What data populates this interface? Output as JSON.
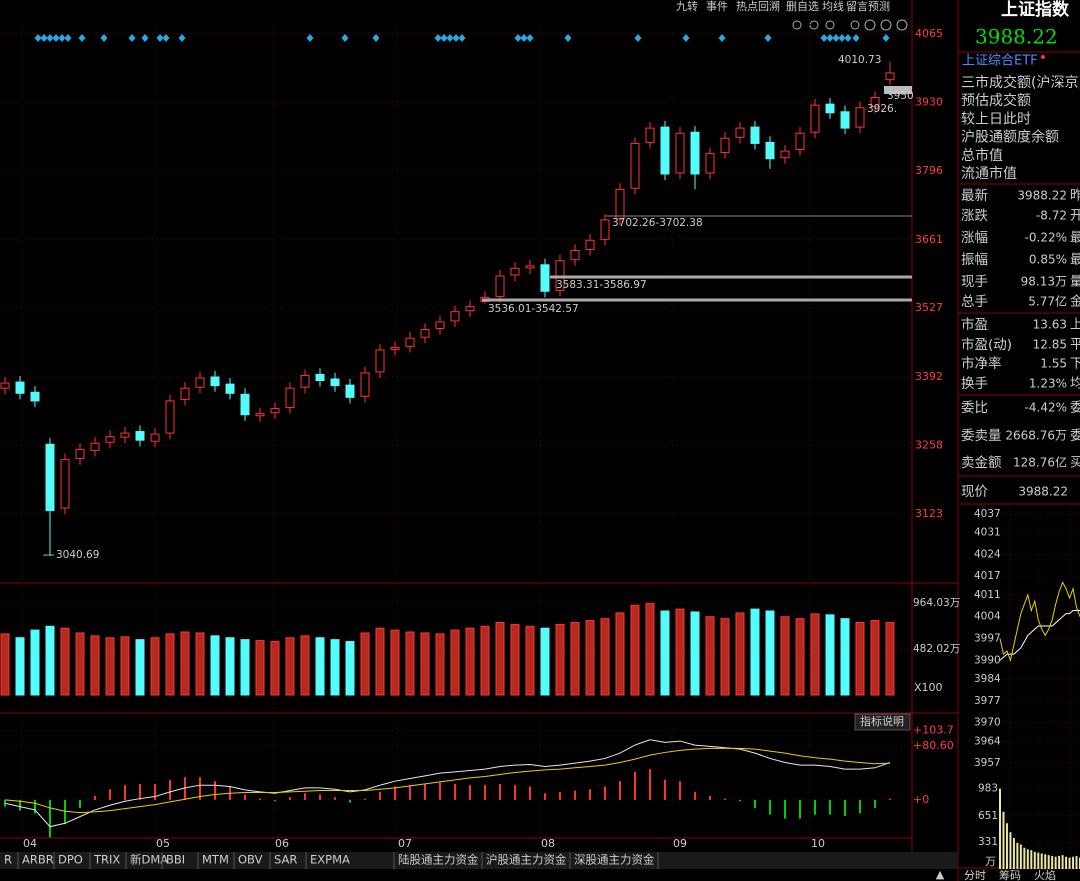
{
  "toolbar": [
    "九转",
    "事件",
    "热点回溯",
    "删自选",
    "均线",
    "留言",
    "预测"
  ],
  "main_chart": {
    "type": "candlestick",
    "ylim": [
      2988,
      4092
    ],
    "yticks": [
      4065,
      3930,
      3796,
      3661,
      3527,
      3392,
      3258,
      3123
    ],
    "open": [
      3370,
      3382,
      3362,
      3260,
      3135,
      3232,
      3248,
      3264,
      3274,
      3285,
      3266,
      3282,
      3348,
      3372,
      3392,
      3378,
      3358,
      3316,
      3322,
      3332,
      3372,
      3397,
      3388,
      3376,
      3354,
      3402,
      3446,
      3452,
      3470,
      3487,
      3502,
      3522,
      3540,
      3550,
      3592,
      3606,
      3612,
      3562,
      3622,
      3642,
      3662,
      3702,
      3762,
      3852,
      3882,
      3792,
      3872,
      3792,
      3832,
      3862,
      3882,
      3852,
      3822,
      3838,
      3872,
      3927,
      3912,
      3882,
      3922,
      3975
    ],
    "close": [
      3380,
      3360,
      3345,
      3130,
      3230,
      3250,
      3262,
      3275,
      3282,
      3268,
      3280,
      3345,
      3370,
      3390,
      3375,
      3360,
      3318,
      3320,
      3330,
      3370,
      3395,
      3385,
      3375,
      3352,
      3400,
      3445,
      3450,
      3468,
      3485,
      3500,
      3520,
      3530,
      3548,
      3590,
      3605,
      3610,
      3560,
      3620,
      3640,
      3660,
      3700,
      3760,
      3850,
      3880,
      3790,
      3870,
      3790,
      3830,
      3860,
      3880,
      3850,
      3820,
      3835,
      3870,
      3925,
      3910,
      3880,
      3920,
      3940,
      3988.22
    ],
    "high": [
      3392,
      3394,
      3374,
      3272,
      3242,
      3262,
      3274,
      3287,
      3294,
      3297,
      3292,
      3357,
      3382,
      3402,
      3404,
      3390,
      3370,
      3332,
      3342,
      3382,
      3407,
      3409,
      3400,
      3388,
      3412,
      3457,
      3462,
      3480,
      3497,
      3512,
      3532,
      3542,
      3560,
      3602,
      3617,
      3622,
      3624,
      3632,
      3652,
      3672,
      3712,
      3772,
      3862,
      3892,
      3894,
      3882,
      3884,
      3842,
      3872,
      3892,
      3894,
      3864,
      3847,
      3882,
      3937,
      3939,
      3924,
      3932,
      3952,
      4010.73
    ],
    "low": [
      3358,
      3348,
      3333,
      3040.69,
      3123,
      3220,
      3236,
      3252,
      3262,
      3256,
      3254,
      3270,
      3336,
      3360,
      3363,
      3348,
      3306,
      3304,
      3310,
      3320,
      3360,
      3373,
      3363,
      3340,
      3342,
      3390,
      3434,
      3440,
      3458,
      3475,
      3490,
      3510,
      3536.01,
      3538,
      3580,
      3594,
      3548,
      3550,
      3610,
      3630,
      3650,
      3690,
      3750,
      3840,
      3778,
      3780,
      3760,
      3780,
      3820,
      3850,
      3838,
      3800,
      3810,
      3826,
      3860,
      3898,
      3868,
      3870,
      3910,
      3965
    ],
    "annotations": [
      "4010.73",
      "3950",
      "3926.",
      "3702.26-3702.38",
      "3583.31-3586.97",
      "3536.01-3542.57",
      "3040.69"
    ],
    "months": [
      "04",
      "05",
      "06",
      "07",
      "08",
      "09",
      "10"
    ]
  },
  "volume": {
    "ylim": [
      0,
      1100
    ],
    "yticks": [
      {
        "value": 964.03,
        "label": "964.03万"
      },
      {
        "value": 482.02,
        "label": "482.02万"
      }
    ],
    "unit": "X100",
    "values": [
      640,
      600,
      680,
      720,
      700,
      650,
      620,
      600,
      610,
      580,
      600,
      640,
      660,
      650,
      620,
      600,
      580,
      570,
      560,
      600,
      620,
      600,
      580,
      560,
      650,
      700,
      680,
      660,
      650,
      640,
      680,
      700,
      720,
      760,
      740,
      720,
      700,
      740,
      760,
      780,
      800,
      860,
      940,
      960,
      880,
      900,
      870,
      820,
      800,
      860,
      900,
      880,
      820,
      800,
      850,
      840,
      800,
      760,
      780,
      760
    ]
  },
  "macd": {
    "button": "指标说明",
    "ylim": [
      -57,
      127
    ],
    "yticks": [
      {
        "value": 103.7,
        "label": "+103.7"
      },
      {
        "value": 80.6,
        "label": "+80.60"
      },
      {
        "value": 0,
        "label": "+0"
      }
    ],
    "dif": [
      -5,
      -10,
      -15,
      -40,
      -35,
      -25,
      -15,
      -8,
      -2,
      2,
      5,
      12,
      18,
      22,
      22,
      20,
      15,
      12,
      10,
      14,
      18,
      18,
      16,
      12,
      15,
      22,
      28,
      32,
      36,
      40,
      42,
      44,
      46,
      50,
      52,
      53,
      50,
      52,
      55,
      58,
      62,
      70,
      82,
      90,
      86,
      88,
      82,
      80,
      78,
      76,
      70,
      62,
      56,
      52,
      52,
      50,
      46,
      46,
      48,
      56
    ],
    "dea": [
      0,
      -2,
      -5,
      -12,
      -17,
      -19,
      -18,
      -16,
      -13,
      -10,
      -7,
      -3,
      1,
      5,
      8,
      10,
      11,
      11,
      11,
      12,
      13,
      14,
      14,
      14,
      14,
      16,
      18,
      21,
      24,
      27,
      30,
      33,
      35,
      38,
      41,
      43,
      45,
      46,
      48,
      50,
      52,
      56,
      61,
      67,
      71,
      74,
      76,
      77,
      77,
      77,
      76,
      73,
      70,
      66,
      63,
      61,
      58,
      56,
      54,
      55
    ],
    "hist": [
      -10,
      -16,
      -20,
      -56,
      -36,
      -12,
      6,
      16,
      22,
      24,
      24,
      30,
      34,
      34,
      28,
      20,
      8,
      2,
      -2,
      4,
      10,
      8,
      4,
      -4,
      2,
      12,
      20,
      22,
      24,
      26,
      24,
      22,
      22,
      24,
      22,
      20,
      10,
      12,
      14,
      16,
      20,
      28,
      42,
      46,
      30,
      28,
      12,
      6,
      2,
      -2,
      -12,
      -22,
      -28,
      -28,
      -22,
      -22,
      -24,
      -20,
      -12,
      2
    ]
  },
  "bottom_tabs": [
    "R",
    "ARBR",
    "DPO",
    "TRIX",
    "新DMA",
    "BBI",
    "MTM",
    "OBV",
    "SAR",
    "EXPMA",
    "陆股通主力资金",
    "沪股通主力资金",
    "深股通主力资金"
  ],
  "quote": {
    "name": "上证指数",
    "price": "3988.22",
    "etf": "上证综合ETF",
    "info_rows": [
      "三市成交额(沪深京)",
      "预估成交额",
      "较上日此时",
      "沪股通额度余额",
      "总市值",
      "流通市值"
    ],
    "stats": [
      {
        "label": "最新",
        "value": "3988.22",
        "extra": "昨",
        "color": "#00e000"
      },
      {
        "label": "涨跌",
        "value": "-8.72",
        "extra": "开",
        "color": "#00e000"
      },
      {
        "label": "涨幅",
        "value": "-0.22%",
        "extra": "最",
        "color": "#00e000"
      },
      {
        "label": "振幅",
        "value": "0.85%",
        "extra": "最",
        "color": "#54fcfc"
      },
      {
        "label": "现手",
        "value": "98.13万",
        "extra": "量",
        "color": "#54fcfc"
      },
      {
        "label": "总手",
        "value": "5.77亿",
        "extra": "金",
        "color": "#54fcfc"
      },
      {
        "label": "市盈",
        "value": "13.63",
        "extra": "上",
        "color": "#e6e6e6"
      },
      {
        "label": "市盈(动)",
        "value": "12.85",
        "extra": "平",
        "color": "#e6e6e6"
      },
      {
        "label": "市净率",
        "value": "1.55",
        "extra": "下",
        "color": "#e6e6e6"
      },
      {
        "label": "换手",
        "value": "1.23%",
        "extra": "均",
        "color": "#54fcfc"
      },
      {
        "label": "委比",
        "value": "-4.42%",
        "extra": "委",
        "color": "#00e000"
      },
      {
        "label": "委卖量",
        "value": "2668.76万",
        "extra": "委",
        "color": "#e6e6e6"
      },
      {
        "label": "卖金额",
        "value": "128.76亿",
        "extra": "买",
        "color": "#54fcfc"
      },
      {
        "label": "现价",
        "value": "3988.22",
        "extra": "",
        "color": "#00e000"
      }
    ]
  },
  "intraday": {
    "ylim": [
      3954.8,
      4039.2
    ],
    "yticks": [
      4037,
      4031,
      4024,
      4017,
      4011,
      4004,
      3997,
      3990,
      3984,
      3977,
      3970,
      3964,
      3957
    ],
    "price": [
      3997,
      3992,
      3993,
      3990,
      3995,
      4000,
      4005,
      4008,
      4011,
      4006,
      4009,
      4003,
      4000,
      3998,
      4000,
      4003,
      4008,
      4012,
      4015,
      4013,
      4010,
      4013,
      4007,
      4004
    ],
    "avg": [
      3990,
      3991,
      3992,
      3992,
      3992,
      3993,
      3994,
      3996,
      3998,
      3999,
      4000,
      4001,
      4001,
      4001,
      4001,
      4001,
      4002,
      4003,
      4004,
      4005,
      4005,
      4006,
      4006,
      4006
    ],
    "volume_ylim": [
      0,
      1150
    ],
    "volume_ticks": [
      983,
      651,
      331
    ],
    "volume_unit": "万",
    "volume": [
      983,
      700,
      560,
      450,
      380,
      320,
      300,
      260,
      240,
      230,
      210,
      200,
      190,
      180,
      170,
      160,
      150,
      160,
      170,
      150,
      140,
      150,
      160,
      140
    ],
    "tabs": [
      "分时",
      "筹码",
      "火焰"
    ]
  }
}
